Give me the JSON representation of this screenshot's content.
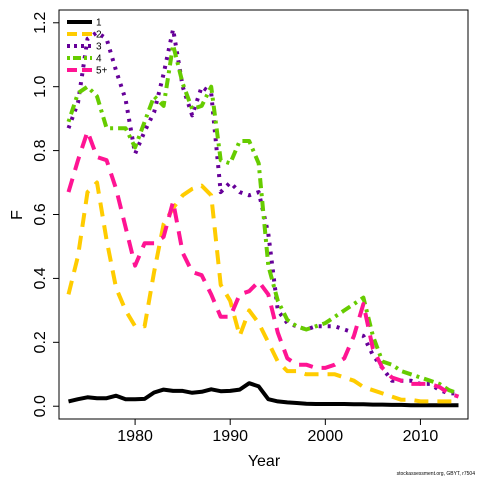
{
  "chart_data": {
    "type": "line",
    "title": "",
    "xlabel": "Year",
    "ylabel": "F",
    "xlim": [
      1972,
      2015
    ],
    "ylim": [
      -0.04,
      1.24
    ],
    "xticks": [
      1980,
      1990,
      2000,
      2010
    ],
    "yticks": [
      0.0,
      0.2,
      0.4,
      0.6,
      0.8,
      1.0,
      1.2
    ],
    "xtick_labels": [
      "1980",
      "1990",
      "2000",
      "2010"
    ],
    "ytick_labels": [
      "0.0",
      "0.2",
      "0.4",
      "0.6",
      "0.8",
      "1.0",
      "1.2"
    ],
    "grid": false,
    "legend_position": "top-left",
    "credit": "stockassessment.org, GBYT, r7504",
    "x": [
      1973,
      1974,
      1975,
      1976,
      1977,
      1978,
      1979,
      1980,
      1981,
      1982,
      1983,
      1984,
      1985,
      1986,
      1987,
      1988,
      1989,
      1990,
      1991,
      1992,
      1993,
      1994,
      1995,
      1996,
      1997,
      1998,
      1999,
      2000,
      2001,
      2002,
      2003,
      2004,
      2005,
      2006,
      2007,
      2008,
      2009,
      2010,
      2011,
      2012,
      2013,
      2014
    ],
    "series": [
      {
        "name": "1",
        "color": "#000000",
        "dash": "solid",
        "values": [
          0.015,
          0.022,
          0.028,
          0.025,
          0.025,
          0.033,
          0.022,
          0.022,
          0.023,
          0.043,
          0.052,
          0.048,
          0.048,
          0.042,
          0.045,
          0.053,
          0.047,
          0.048,
          0.052,
          0.072,
          0.062,
          0.022,
          0.015,
          0.012,
          0.01,
          0.008,
          0.007,
          0.007,
          0.007,
          0.007,
          0.006,
          0.006,
          0.005,
          0.005,
          0.004,
          0.004,
          0.003,
          0.003,
          0.003,
          0.003,
          0.003,
          0.003
        ]
      },
      {
        "name": "2",
        "color": "#FFCC00",
        "dash": "long",
        "values": [
          0.35,
          0.47,
          0.67,
          0.7,
          0.52,
          0.37,
          0.3,
          0.25,
          0.25,
          0.42,
          0.57,
          0.62,
          0.66,
          0.68,
          0.69,
          0.66,
          0.38,
          0.33,
          0.22,
          0.3,
          0.26,
          0.2,
          0.14,
          0.11,
          0.11,
          0.1,
          0.1,
          0.1,
          0.1,
          0.09,
          0.08,
          0.06,
          0.05,
          0.04,
          0.03,
          0.02,
          0.02,
          0.015,
          0.015,
          0.015,
          0.015,
          0.015
        ]
      },
      {
        "name": "3",
        "color": "#660099",
        "dash": "dot",
        "values": [
          0.87,
          0.95,
          1.15,
          1.17,
          1.15,
          1.05,
          0.96,
          0.79,
          0.86,
          0.92,
          1.04,
          1.18,
          1.0,
          0.91,
          1.0,
          0.98,
          0.67,
          0.7,
          0.67,
          0.66,
          0.67,
          0.54,
          0.3,
          0.26,
          0.25,
          0.24,
          0.25,
          0.25,
          0.25,
          0.24,
          0.23,
          0.22,
          0.16,
          0.12,
          0.08,
          0.08,
          0.08,
          0.07,
          0.07,
          0.05,
          0.04,
          0.04
        ]
      },
      {
        "name": "4",
        "color": "#66CC00",
        "dash": "dotdash",
        "values": [
          0.89,
          0.98,
          1.0,
          0.97,
          0.87,
          0.87,
          0.87,
          0.81,
          0.89,
          0.97,
          0.94,
          1.13,
          1.01,
          0.93,
          0.94,
          1.0,
          0.77,
          0.76,
          0.83,
          0.83,
          0.76,
          0.44,
          0.33,
          0.27,
          0.25,
          0.24,
          0.25,
          0.26,
          0.28,
          0.3,
          0.32,
          0.34,
          0.22,
          0.14,
          0.13,
          0.11,
          0.1,
          0.09,
          0.08,
          0.07,
          0.05,
          0.04
        ]
      },
      {
        "name": "5+",
        "color": "#FF1493",
        "dash": "long",
        "values": [
          0.67,
          0.77,
          0.86,
          0.78,
          0.77,
          0.68,
          0.56,
          0.44,
          0.51,
          0.51,
          0.53,
          0.64,
          0.48,
          0.42,
          0.41,
          0.35,
          0.28,
          0.28,
          0.35,
          0.36,
          0.39,
          0.35,
          0.23,
          0.15,
          0.13,
          0.13,
          0.12,
          0.12,
          0.13,
          0.15,
          0.22,
          0.32,
          0.18,
          0.12,
          0.09,
          0.08,
          0.07,
          0.07,
          0.07,
          0.06,
          0.04,
          0.03
        ]
      }
    ]
  }
}
